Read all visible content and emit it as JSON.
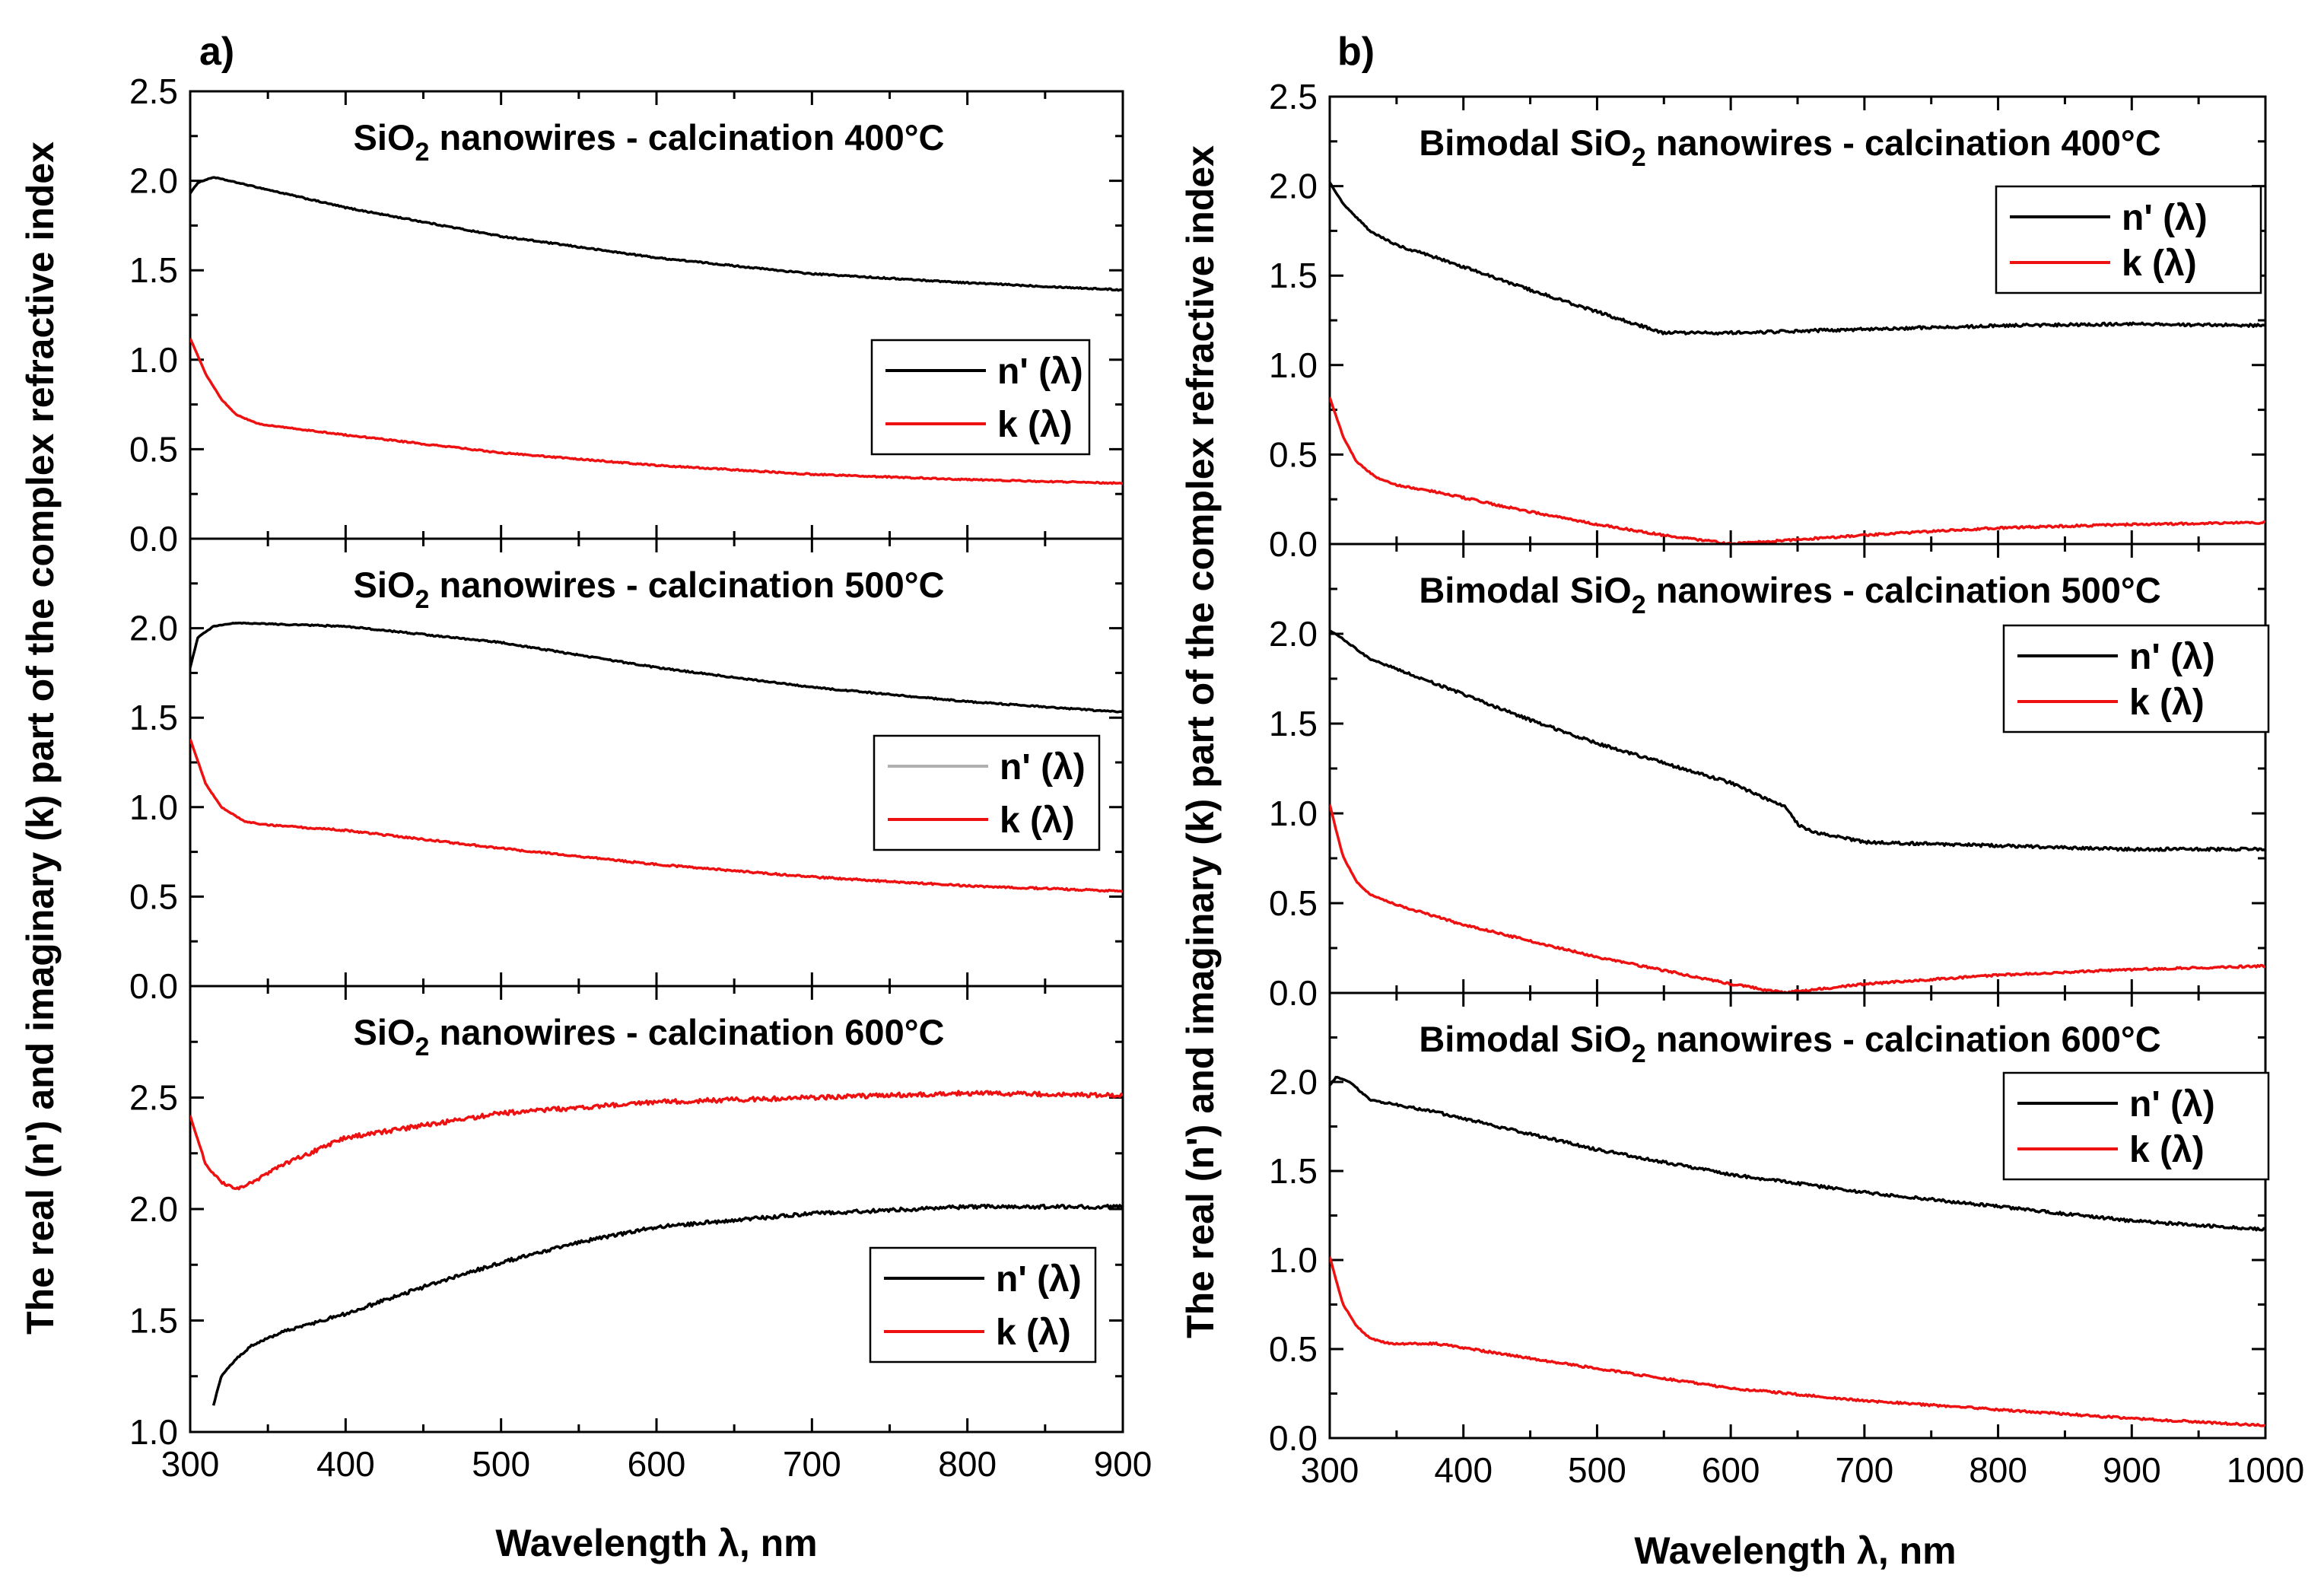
{
  "colors": {
    "n": "#000000",
    "k": "#ee1111",
    "n_faded": "#b0b0b0"
  },
  "figure": {
    "y_axis_title": "The real (n') and imaginary (k) part of the complex refractive index",
    "x_axis_title": "Wavelength λ, nm"
  },
  "chart_data": [
    {
      "type": "line",
      "panel": "a)",
      "title_pre": "SiO",
      "title_sub": "2",
      "title_post": " nanowires - calcination 400°C",
      "xlim": [
        300,
        900
      ],
      "xticks": [
        "300",
        "400",
        "500",
        "600",
        "700",
        "800",
        "900"
      ],
      "ylim": [
        0,
        2.5
      ],
      "yticks": [
        "0.0",
        "0.5",
        "1.0",
        "1.5",
        "2.0",
        "2.5"
      ],
      "legend": [
        "n' (λ)",
        "k (λ)"
      ],
      "legend_position": "middle-right",
      "series": [
        {
          "name": "n' (λ)",
          "color": "n",
          "noise": 0.004,
          "x": [
            300,
            305,
            315,
            330,
            400,
            500,
            600,
            700,
            800,
            900
          ],
          "y": [
            1.93,
            1.99,
            2.02,
            1.99,
            1.85,
            1.69,
            1.57,
            1.48,
            1.43,
            1.39
          ]
        },
        {
          "name": "k (λ)",
          "color": "k",
          "noise": 0.004,
          "x": [
            300,
            310,
            320,
            330,
            345,
            400,
            500,
            600,
            700,
            800,
            900
          ],
          "y": [
            1.12,
            0.92,
            0.78,
            0.69,
            0.64,
            0.58,
            0.48,
            0.41,
            0.36,
            0.33,
            0.31
          ]
        }
      ]
    },
    {
      "type": "line",
      "panel": "",
      "title_pre": "SiO",
      "title_sub": "2",
      "title_post": " nanowires - calcination 500°C",
      "xlim": [
        300,
        900
      ],
      "xticks": [
        "300",
        "400",
        "500",
        "600",
        "700",
        "800",
        "900"
      ],
      "ylim": [
        0,
        2.5
      ],
      "yticks": [
        "0.0",
        "0.5",
        "1.0",
        "1.5",
        "2.0",
        ""
      ],
      "legend": [
        "n' (λ)",
        "k (λ)"
      ],
      "legend_position": "middle-right",
      "series": [
        {
          "name": "n' (λ)",
          "color": "n",
          "legend_color": "n_faded",
          "noise": 0.004,
          "x": [
            300,
            305,
            315,
            330,
            400,
            500,
            600,
            700,
            800,
            900
          ],
          "y": [
            1.78,
            1.95,
            2.01,
            2.03,
            2.01,
            1.92,
            1.78,
            1.67,
            1.59,
            1.53
          ]
        },
        {
          "name": "k (λ)",
          "color": "k",
          "noise": 0.005,
          "x": [
            300,
            310,
            320,
            335,
            350,
            400,
            500,
            600,
            700,
            800,
            900
          ],
          "y": [
            1.38,
            1.13,
            1.0,
            0.92,
            0.9,
            0.87,
            0.77,
            0.68,
            0.61,
            0.56,
            0.53
          ]
        }
      ]
    },
    {
      "type": "line",
      "panel": "",
      "title_pre": "SiO",
      "title_sub": "2",
      "title_post": " nanowires - calcination 600°C",
      "xlim": [
        300,
        900
      ],
      "xticks": [
        "300",
        "400",
        "500",
        "600",
        "700",
        "800",
        "900"
      ],
      "ylim": [
        1.0,
        3.0
      ],
      "yticks": [
        "1.0",
        "1.5",
        "2.0",
        "2.5",
        ""
      ],
      "legend": [
        "n' (λ)",
        "k (λ)"
      ],
      "legend_position": "bottom-right",
      "series": [
        {
          "name": "n' (λ)",
          "color": "n",
          "noise": 0.008,
          "x": [
            315,
            320,
            330,
            340,
            360,
            400,
            450,
            500,
            550,
            600,
            700,
            800,
            900
          ],
          "y": [
            1.12,
            1.25,
            1.33,
            1.39,
            1.45,
            1.53,
            1.65,
            1.76,
            1.85,
            1.92,
            1.98,
            2.01,
            2.01
          ]
        },
        {
          "name": "k (λ)",
          "color": "k",
          "noise": 0.01,
          "x": [
            300,
            310,
            320,
            330,
            340,
            360,
            400,
            500,
            600,
            700,
            800,
            900
          ],
          "y": [
            2.42,
            2.2,
            2.12,
            2.09,
            2.12,
            2.2,
            2.32,
            2.43,
            2.48,
            2.5,
            2.52,
            2.51
          ]
        }
      ]
    },
    {
      "type": "line",
      "panel": "b)",
      "title_pre": "Bimodal SiO",
      "title_sub": "2",
      "title_post": " nanowires - calcination 400°C",
      "xlim": [
        300,
        1000
      ],
      "xticks": [
        "300",
        "400",
        "500",
        "600",
        "700",
        "800",
        "900",
        "1000"
      ],
      "ylim": [
        0,
        2.5
      ],
      "yticks": [
        "0.0",
        "0.5",
        "1.0",
        "1.5",
        "2.0",
        "2.5"
      ],
      "legend": [
        "n' (λ)",
        "k (λ)"
      ],
      "legend_position": "top-right",
      "series": [
        {
          "name": "n' (λ)",
          "color": "n",
          "noise": 0.008,
          "x": [
            300,
            310,
            330,
            350,
            380,
            450,
            520,
            550,
            600,
            700,
            800,
            900,
            1000
          ],
          "y": [
            2.02,
            1.9,
            1.75,
            1.67,
            1.6,
            1.42,
            1.25,
            1.18,
            1.18,
            1.2,
            1.22,
            1.23,
            1.22
          ]
        },
        {
          "name": "k (λ)",
          "color": "k",
          "noise": 0.006,
          "x": [
            300,
            310,
            320,
            335,
            350,
            380,
            450,
            500,
            550,
            600,
            700,
            800,
            900,
            1000
          ],
          "y": [
            0.82,
            0.6,
            0.46,
            0.37,
            0.33,
            0.29,
            0.18,
            0.11,
            0.05,
            0.0,
            0.05,
            0.09,
            0.11,
            0.12
          ]
        }
      ]
    },
    {
      "type": "line",
      "panel": "",
      "title_pre": "Bimodal SiO",
      "title_sub": "2",
      "title_post": " nanowires - calcination 500°C",
      "xlim": [
        300,
        1000
      ],
      "xticks": [
        "300",
        "400",
        "500",
        "600",
        "700",
        "800",
        "900",
        "1000"
      ],
      "ylim": [
        0,
        2.5
      ],
      "yticks": [
        "0.0",
        "0.5",
        "1.0",
        "1.5",
        "2.0",
        ""
      ],
      "legend": [
        "n' (λ)",
        "k (λ)"
      ],
      "legend_position": "top-right",
      "series": [
        {
          "name": "n' (λ)",
          "color": "n",
          "noise": 0.008,
          "x": [
            300,
            310,
            330,
            380,
            450,
            500,
            550,
            600,
            630,
            640,
            645,
            650,
            660,
            700,
            800,
            900,
            1000
          ],
          "y": [
            2.02,
            1.97,
            1.86,
            1.72,
            1.52,
            1.39,
            1.28,
            1.17,
            1.07,
            1.04,
            1.0,
            0.94,
            0.9,
            0.84,
            0.82,
            0.8,
            0.8
          ]
        },
        {
          "name": "k (λ)",
          "color": "k",
          "noise": 0.006,
          "x": [
            300,
            305,
            310,
            320,
            330,
            350,
            400,
            500,
            600,
            640,
            700,
            800,
            900,
            1000
          ],
          "y": [
            1.05,
            0.9,
            0.76,
            0.62,
            0.55,
            0.49,
            0.38,
            0.2,
            0.05,
            0.0,
            0.05,
            0.1,
            0.13,
            0.15
          ]
        }
      ]
    },
    {
      "type": "line",
      "panel": "",
      "title_pre": "Bimodal SiO",
      "title_sub": "2",
      "title_post": " nanowires - calcination 600°C",
      "xlim": [
        300,
        1000
      ],
      "xticks": [
        "300",
        "400",
        "500",
        "600",
        "700",
        "800",
        "900",
        "1000"
      ],
      "ylim": [
        0,
        2.5
      ],
      "yticks": [
        "0.0",
        "0.5",
        "1.0",
        "1.5",
        "2.0",
        ""
      ],
      "legend": [
        "n' (λ)",
        "k (λ)"
      ],
      "legend_position": "top-right",
      "series": [
        {
          "name": "n' (λ)",
          "color": "n",
          "noise": 0.008,
          "x": [
            300,
            305,
            315,
            330,
            380,
            500,
            600,
            700,
            800,
            900,
            1000
          ],
          "y": [
            1.98,
            2.03,
            2.0,
            1.9,
            1.83,
            1.62,
            1.48,
            1.38,
            1.3,
            1.22,
            1.17
          ]
        },
        {
          "name": "k (λ)",
          "color": "k",
          "noise": 0.006,
          "x": [
            300,
            305,
            310,
            320,
            330,
            345,
            380,
            500,
            600,
            700,
            800,
            900,
            1000
          ],
          "y": [
            1.02,
            0.88,
            0.75,
            0.63,
            0.56,
            0.53,
            0.53,
            0.39,
            0.28,
            0.21,
            0.16,
            0.11,
            0.07
          ]
        }
      ]
    }
  ]
}
